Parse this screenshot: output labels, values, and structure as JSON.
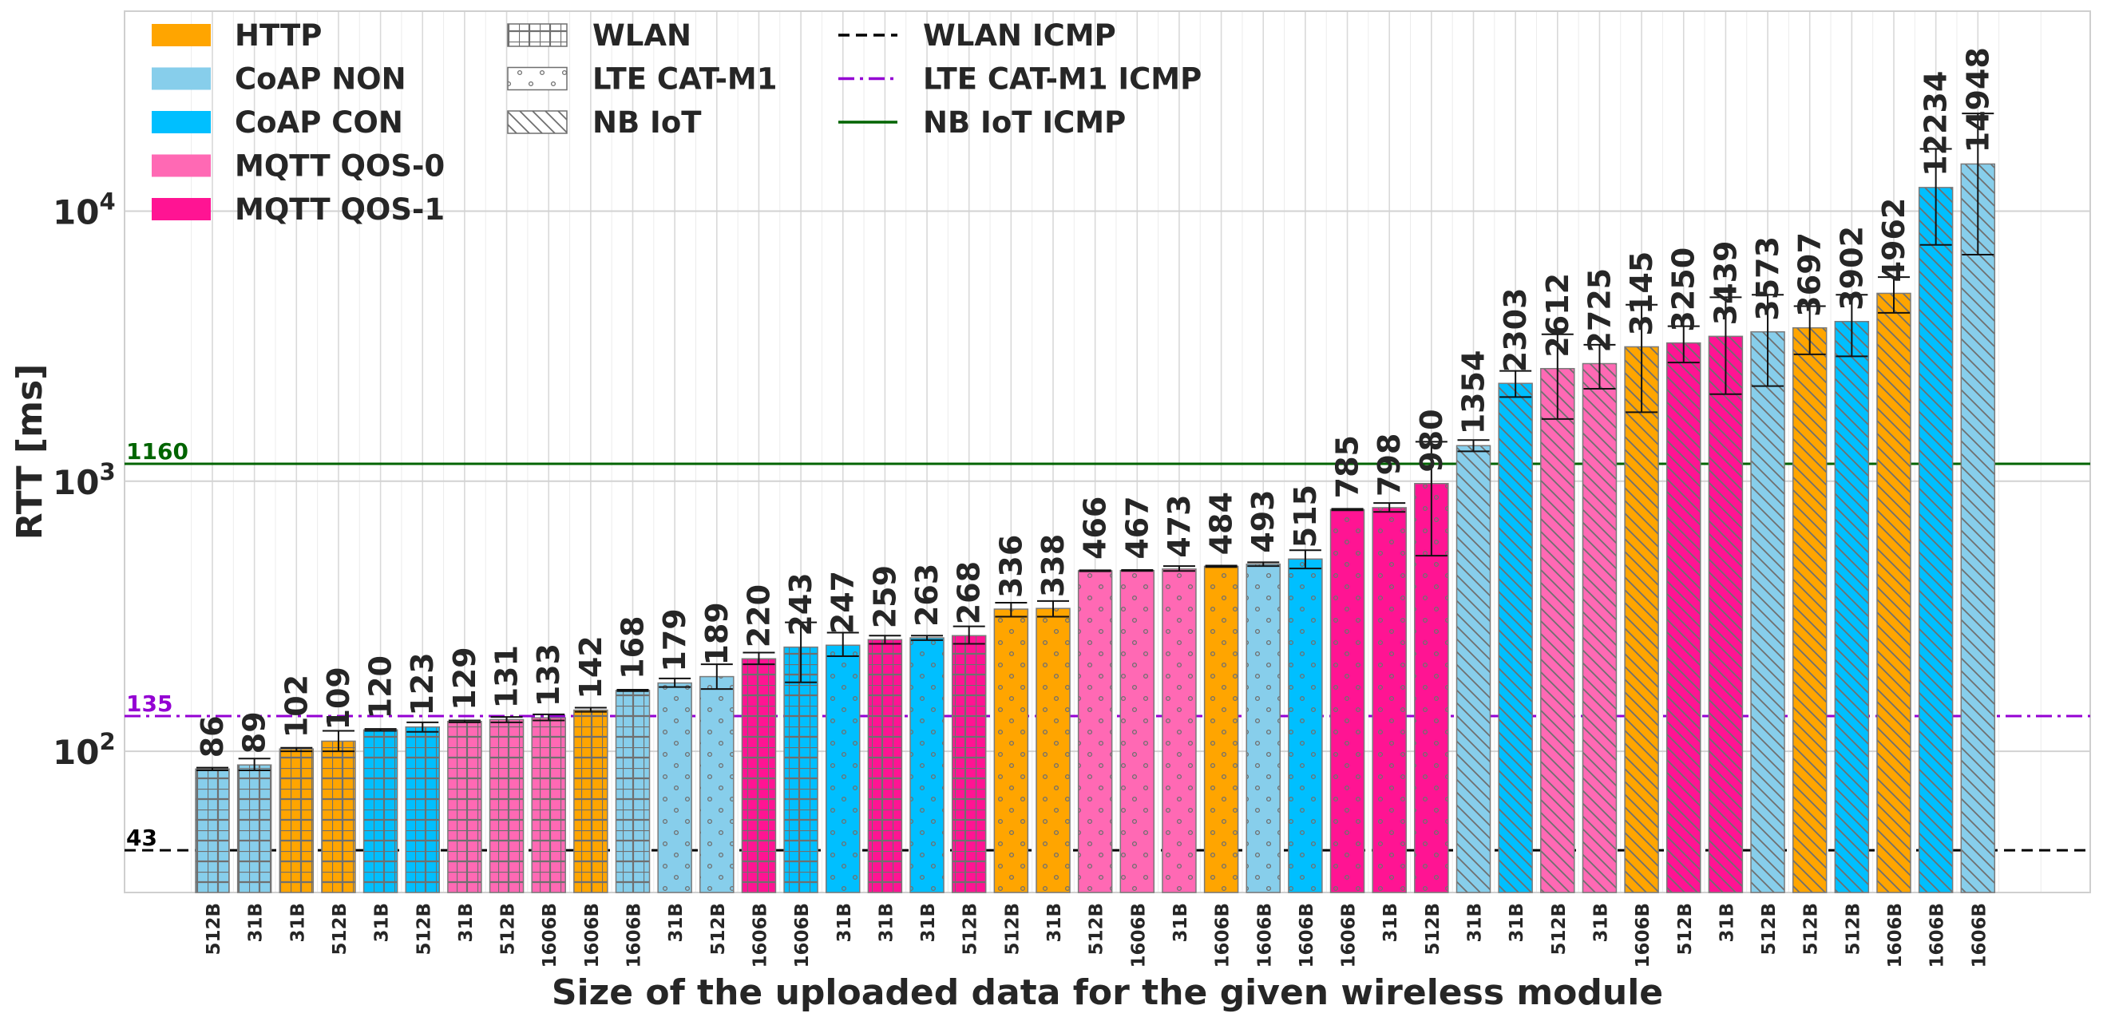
{
  "chart_data": {
    "type": "bar",
    "title": "",
    "xlabel": "Size of the uploaded data for the given wireless module",
    "ylabel": "RTT [ms]",
    "y_scale": "log",
    "ylim": [
      30,
      55000
    ],
    "y_ticks": [
      {
        "value": 100,
        "base": "10",
        "exp": "2"
      },
      {
        "value": 1000,
        "base": "10",
        "exp": "3"
      },
      {
        "value": 10000,
        "base": "10",
        "exp": "4"
      }
    ],
    "grid": true,
    "legend_position": "top-left",
    "colors": {
      "HTTP": "#FFA500",
      "CoAP NON": "#87CEEB",
      "CoAP CON": "#00BFFF",
      "MQTT QOS-0": "#FF69B4",
      "MQTT QOS-1": "#FF1493"
    },
    "legend_protocols": [
      "HTTP",
      "CoAP NON",
      "CoAP CON",
      "MQTT QOS-0",
      "MQTT QOS-1"
    ],
    "legend_modules": [
      {
        "label": "WLAN",
        "pattern": "grid"
      },
      {
        "label": "LTE CAT-M1",
        "pattern": "dots"
      },
      {
        "label": "NB IoT",
        "pattern": "hatch"
      }
    ],
    "reference_lines": [
      {
        "label": "WLAN ICMP",
        "value": 43,
        "value_label": "43",
        "color": "#000000",
        "style": "dashed"
      },
      {
        "label": "LTE CAT-M1 ICMP",
        "value": 135,
        "value_label": "135",
        "color": "#9400D3",
        "style": "dashdot"
      },
      {
        "label": "NB IoT ICMP",
        "value": 1160,
        "value_label": "1160",
        "color": "#006400",
        "style": "solid"
      }
    ],
    "bars": [
      {
        "size": "512B",
        "value": 86,
        "label": "86",
        "protocol": "CoAP NON",
        "module": "WLAN",
        "err": [
          85,
          87
        ]
      },
      {
        "size": "31B",
        "value": 89,
        "label": "89",
        "protocol": "CoAP NON",
        "module": "WLAN",
        "err": [
          85,
          94
        ]
      },
      {
        "size": "31B",
        "value": 102,
        "label": "102",
        "protocol": "HTTP",
        "module": "WLAN",
        "err": [
          100,
          103
        ]
      },
      {
        "size": "512B",
        "value": 109,
        "label": "109",
        "protocol": "HTTP",
        "module": "WLAN",
        "err": [
          100,
          119
        ]
      },
      {
        "size": "31B",
        "value": 120,
        "label": "120",
        "protocol": "CoAP CON",
        "module": "WLAN",
        "err": [
          119,
          121
        ]
      },
      {
        "size": "512B",
        "value": 123,
        "label": "123",
        "protocol": "CoAP CON",
        "module": "WLAN",
        "err": [
          118,
          128
        ]
      },
      {
        "size": "31B",
        "value": 129,
        "label": "129",
        "protocol": "MQTT QOS-0",
        "module": "WLAN",
        "err": [
          128,
          130
        ]
      },
      {
        "size": "512B",
        "value": 131,
        "label": "131",
        "protocol": "MQTT QOS-0",
        "module": "WLAN",
        "err": [
          128,
          134
        ]
      },
      {
        "size": "1606B",
        "value": 133,
        "label": "133",
        "protocol": "MQTT QOS-0",
        "module": "WLAN",
        "err": [
          130,
          137
        ]
      },
      {
        "size": "1606B",
        "value": 142,
        "label": "142",
        "protocol": "HTTP",
        "module": "WLAN",
        "err": [
          140,
          145
        ]
      },
      {
        "size": "1606B",
        "value": 168,
        "label": "168",
        "protocol": "CoAP NON",
        "module": "WLAN",
        "err": [
          167,
          169
        ]
      },
      {
        "size": "31B",
        "value": 179,
        "label": "179",
        "protocol": "CoAP NON",
        "module": "LTE CAT-M1",
        "err": [
          173,
          186
        ]
      },
      {
        "size": "512B",
        "value": 189,
        "label": "189",
        "protocol": "CoAP NON",
        "module": "LTE CAT-M1",
        "err": [
          170,
          210
        ]
      },
      {
        "size": "1606B",
        "value": 220,
        "label": "220",
        "protocol": "MQTT QOS-1",
        "module": "WLAN",
        "err": [
          210,
          232
        ]
      },
      {
        "size": "1606B",
        "value": 243,
        "label": "243",
        "protocol": "CoAP CON",
        "module": "WLAN",
        "err": [
          180,
          300
        ]
      },
      {
        "size": "31B",
        "value": 247,
        "label": "247",
        "protocol": "CoAP CON",
        "module": "LTE CAT-M1",
        "err": [
          225,
          275
        ]
      },
      {
        "size": "31B",
        "value": 259,
        "label": "259",
        "protocol": "MQTT QOS-1",
        "module": "WLAN",
        "err": [
          250,
          268
        ]
      },
      {
        "size": "31B",
        "value": 263,
        "label": "263",
        "protocol": "CoAP CON",
        "module": "LTE CAT-M1",
        "err": [
          258,
          268
        ]
      },
      {
        "size": "512B",
        "value": 268,
        "label": "268",
        "protocol": "MQTT QOS-1",
        "module": "WLAN",
        "err": [
          250,
          290
        ]
      },
      {
        "size": "512B",
        "value": 336,
        "label": "336",
        "protocol": "HTTP",
        "module": "LTE CAT-M1",
        "err": [
          315,
          355
        ]
      },
      {
        "size": "31B",
        "value": 338,
        "label": "338",
        "protocol": "HTTP",
        "module": "LTE CAT-M1",
        "err": [
          315,
          360
        ]
      },
      {
        "size": "512B",
        "value": 466,
        "label": "466",
        "protocol": "MQTT QOS-0",
        "module": "LTE CAT-M1",
        "err": [
          464,
          468
        ]
      },
      {
        "size": "1606B",
        "value": 467,
        "label": "467",
        "protocol": "MQTT QOS-0",
        "module": "LTE CAT-M1",
        "err": [
          465,
          469
        ]
      },
      {
        "size": "31B",
        "value": 473,
        "label": "473",
        "protocol": "MQTT QOS-0",
        "module": "LTE CAT-M1",
        "err": [
          465,
          485
        ]
      },
      {
        "size": "1606B",
        "value": 484,
        "label": "484",
        "protocol": "HTTP",
        "module": "LTE CAT-M1",
        "err": [
          481,
          487
        ]
      },
      {
        "size": "1606B",
        "value": 493,
        "label": "493",
        "protocol": "CoAP NON",
        "module": "LTE CAT-M1",
        "err": [
          485,
          501
        ]
      },
      {
        "size": "1606B",
        "value": 515,
        "label": "515",
        "protocol": "CoAP CON",
        "module": "LTE CAT-M1",
        "err": [
          475,
          555
        ]
      },
      {
        "size": "1606B",
        "value": 785,
        "label": "785",
        "protocol": "MQTT QOS-1",
        "module": "LTE CAT-M1",
        "err": [
          780,
          790
        ]
      },
      {
        "size": "31B",
        "value": 798,
        "label": "798",
        "protocol": "MQTT QOS-1",
        "module": "LTE CAT-M1",
        "err": [
          770,
          830
        ]
      },
      {
        "size": "512B",
        "value": 980,
        "label": "980",
        "protocol": "MQTT QOS-1",
        "module": "LTE CAT-M1",
        "err": [
          530,
          1400
        ]
      },
      {
        "size": "31B",
        "value": 1354,
        "label": "1354",
        "protocol": "CoAP NON",
        "module": "NB IoT",
        "err": [
          1290,
          1420
        ]
      },
      {
        "size": "31B",
        "value": 2303,
        "label": "2303",
        "protocol": "CoAP CON",
        "module": "NB IoT",
        "err": [
          2050,
          2560
        ]
      },
      {
        "size": "512B",
        "value": 2612,
        "label": "2612",
        "protocol": "MQTT QOS-0",
        "module": "NB IoT",
        "err": [
          1700,
          3500
        ]
      },
      {
        "size": "31B",
        "value": 2725,
        "label": "2725",
        "protocol": "MQTT QOS-0",
        "module": "NB IoT",
        "err": [
          2200,
          3200
        ]
      },
      {
        "size": "1606B",
        "value": 3145,
        "label": "3145",
        "protocol": "HTTP",
        "module": "NB IoT",
        "err": [
          1800,
          4500
        ]
      },
      {
        "size": "512B",
        "value": 3250,
        "label": "3250",
        "protocol": "MQTT QOS-1",
        "module": "NB IoT",
        "err": [
          2750,
          3750
        ]
      },
      {
        "size": "31B",
        "value": 3439,
        "label": "3439",
        "protocol": "MQTT QOS-1",
        "module": "NB IoT",
        "err": [
          2100,
          4800
        ]
      },
      {
        "size": "512B",
        "value": 3573,
        "label": "3573",
        "protocol": "CoAP NON",
        "module": "NB IoT",
        "err": [
          2250,
          4900
        ]
      },
      {
        "size": "512B",
        "value": 3697,
        "label": "3697",
        "protocol": "HTTP",
        "module": "NB IoT",
        "err": [
          2950,
          4450
        ]
      },
      {
        "size": "512B",
        "value": 3902,
        "label": "3902",
        "protocol": "CoAP CON",
        "module": "NB IoT",
        "err": [
          2900,
          4900
        ]
      },
      {
        "size": "1606B",
        "value": 4962,
        "label": "4962",
        "protocol": "HTTP",
        "module": "NB IoT",
        "err": [
          4200,
          5700
        ]
      },
      {
        "size": "1606B",
        "value": 12234,
        "label": "12234",
        "protocol": "CoAP CON",
        "module": "NB IoT",
        "err": [
          7500,
          17000
        ]
      },
      {
        "size": "1606B",
        "value": 14948,
        "label": "14948",
        "protocol": "CoAP NON",
        "module": "NB IoT",
        "err": [
          6900,
          23000
        ]
      }
    ]
  }
}
